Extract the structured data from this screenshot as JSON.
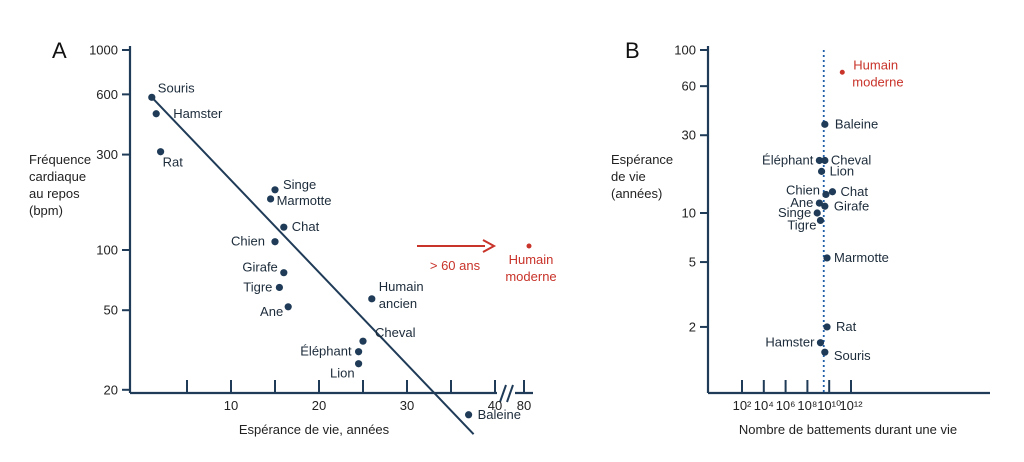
{
  "chart_data": [
    {
      "panel": "A",
      "type": "scatter",
      "xlabel": "Espérance de vie, années",
      "ylabel": [
        "Fréquence",
        "cardiaque",
        "au repos",
        "(bpm)"
      ],
      "yscale": "log",
      "xlim": [
        0,
        40
      ],
      "ylim": [
        12,
        1000
      ],
      "x_ticks": [
        "10",
        "20",
        "30",
        "40"
      ],
      "x_break_tick": "80",
      "y_ticks": [
        "1000",
        "600",
        "300",
        "100",
        "50",
        "20"
      ],
      "points": [
        {
          "name": "Souris",
          "x": 1,
          "y": 580
        },
        {
          "name": "Hamster",
          "x": 1.5,
          "y": 480
        },
        {
          "name": "Rat",
          "x": 2,
          "y": 310
        },
        {
          "name": "Singe",
          "x": 15,
          "y": 200
        },
        {
          "name": "Marmotte",
          "x": 14.5,
          "y": 180
        },
        {
          "name": "Chat",
          "x": 16,
          "y": 130
        },
        {
          "name": "Chien",
          "x": 15,
          "y": 110
        },
        {
          "name": "Girafe",
          "x": 16,
          "y": 77
        },
        {
          "name": "Tigre",
          "x": 15.5,
          "y": 65
        },
        {
          "name": "Ane",
          "x": 16.5,
          "y": 52
        },
        {
          "name": "Humain ancien",
          "x": 26,
          "y": 57
        },
        {
          "name": "Cheval",
          "x": 25,
          "y": 35
        },
        {
          "name": "Éléphant",
          "x": 24.5,
          "y": 31
        },
        {
          "name": "Lion",
          "x": 24.5,
          "y": 27
        },
        {
          "name": "Baleine",
          "x": 37,
          "y": 15
        }
      ],
      "trendline": [
        {
          "x": 1,
          "y": 580
        },
        {
          "x": 37,
          "y": 12
        }
      ],
      "annotation": {
        "text": "> 60 ans",
        "target": "Humain moderne",
        "x": 80,
        "y": 56
      }
    },
    {
      "panel": "B",
      "type": "scatter",
      "xlabel": "Nombre de battements durant une vie",
      "ylabel": [
        "Espérance",
        "de vie",
        "(années)"
      ],
      "xscale": "log",
      "yscale": "log",
      "x_ticks": [
        "10²",
        "10⁴",
        "10⁶",
        "10⁸",
        "10¹⁰",
        "10¹²"
      ],
      "y_ticks": [
        "100",
        "60",
        "30",
        "10",
        "5",
        "2"
      ],
      "vertical_line_x": 9.5,
      "points": [
        {
          "name": "Baleine",
          "x": 9.6,
          "y": 35
        },
        {
          "name": "Éléphant",
          "x": 9.1,
          "y": 21
        },
        {
          "name": "Cheval",
          "x": 9.6,
          "y": 21
        },
        {
          "name": "Lion",
          "x": 9.3,
          "y": 18
        },
        {
          "name": "Chien",
          "x": 9.7,
          "y": 13
        },
        {
          "name": "Chat",
          "x": 10.3,
          "y": 13.5
        },
        {
          "name": "Ane",
          "x": 9.1,
          "y": 11.5
        },
        {
          "name": "Girafe",
          "x": 9.6,
          "y": 11
        },
        {
          "name": "Singe",
          "x": 8.9,
          "y": 10
        },
        {
          "name": "Tigre",
          "x": 9.2,
          "y": 9
        },
        {
          "name": "Marmotte",
          "x": 9.8,
          "y": 5.3
        },
        {
          "name": "Rat",
          "x": 9.8,
          "y": 2
        },
        {
          "name": "Hamster",
          "x": 9.2,
          "y": 1.6
        },
        {
          "name": "Souris",
          "x": 9.6,
          "y": 1.4
        },
        {
          "name": "Humain moderne",
          "x": 11.2,
          "y": 73,
          "highlight": true
        }
      ]
    }
  ]
}
